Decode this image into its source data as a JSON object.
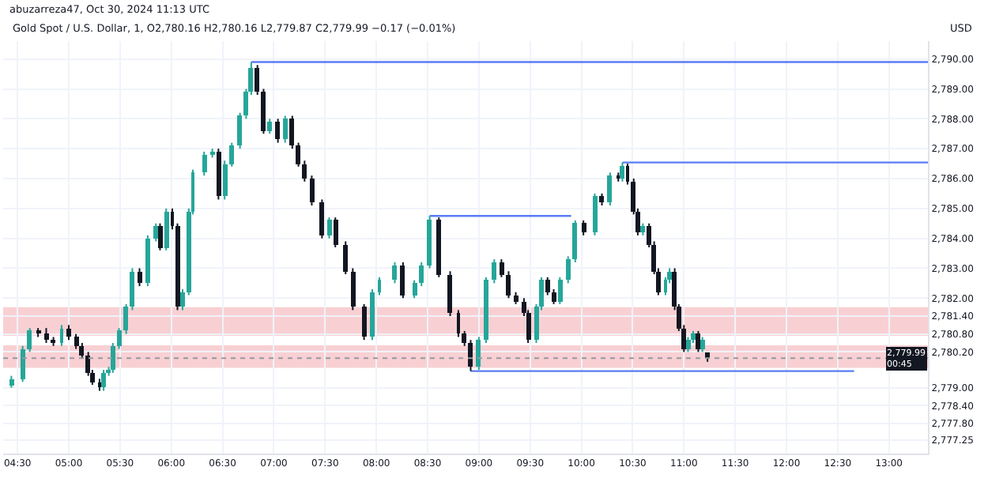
{
  "chart_data": {
    "type": "candlestick",
    "title": "Gold Spot / U.S. Dollar, 1, O2,780.16 H2,780.16 L2,779.87 C2,779.99 −0.17 (−0.01%)",
    "ylabel": "USD",
    "annotations": [
      "abuzarreza47, Oct 30, 2024 11:13 UTC"
    ],
    "x": [
      4.44,
      4.55,
      4.62,
      4.7,
      4.78,
      4.85,
      4.93,
      5.0,
      5.07,
      5.13,
      5.19,
      5.23,
      5.3,
      5.34,
      5.39,
      5.43,
      5.49,
      5.56,
      5.62,
      5.69,
      5.77,
      5.85,
      5.89,
      5.95,
      6.01,
      6.06,
      6.11,
      6.17,
      6.21,
      6.32,
      6.4,
      6.46,
      6.52,
      6.59,
      6.67,
      6.73,
      6.78,
      6.84,
      6.9,
      6.96,
      7.04,
      7.11,
      7.18,
      7.24,
      7.3,
      7.37,
      7.47,
      7.54,
      7.6,
      7.7,
      7.77,
      7.88,
      7.96,
      8.03,
      8.18,
      8.26,
      8.37,
      8.44,
      8.52,
      8.61,
      8.72,
      8.8,
      8.86,
      8.92,
      9.0,
      9.07,
      9.15,
      9.22,
      9.29,
      9.36,
      9.44,
      9.48,
      9.56,
      9.61,
      9.67,
      9.73,
      9.79,
      9.87,
      9.94,
      10.02,
      10.13,
      10.2,
      10.28,
      10.36,
      10.4,
      10.45,
      10.51,
      10.55,
      10.6,
      10.66,
      10.71,
      10.75,
      10.82,
      10.86,
      10.91,
      10.95,
      11.0,
      11.04,
      11.09,
      11.14,
      11.18,
      11.23
    ],
    "ohlc": [
      [
        2779.1,
        2779.4,
        2779.0,
        2779.3
      ],
      [
        2779.3,
        2780.4,
        2779.2,
        2780.3
      ],
      [
        2780.3,
        2781.0,
        2780.2,
        2780.9
      ],
      [
        2780.9,
        2781.0,
        2780.7,
        2780.8
      ],
      [
        2780.8,
        2781.0,
        2780.5,
        2780.6
      ],
      [
        2780.6,
        2780.7,
        2780.4,
        2780.5
      ],
      [
        2780.5,
        2781.1,
        2780.4,
        2781.0
      ],
      [
        2781.0,
        2781.1,
        2780.6,
        2780.7
      ],
      [
        2780.7,
        2780.8,
        2780.3,
        2780.4
      ],
      [
        2780.4,
        2780.5,
        2780.0,
        2780.1
      ],
      [
        2780.1,
        2780.2,
        2779.4,
        2779.5
      ],
      [
        2779.5,
        2779.6,
        2779.1,
        2779.2
      ],
      [
        2779.2,
        2779.3,
        2778.9,
        2779.0
      ],
      [
        2779.0,
        2779.6,
        2778.9,
        2779.5
      ],
      [
        2779.5,
        2779.7,
        2779.4,
        2779.6
      ],
      [
        2779.6,
        2780.5,
        2779.5,
        2780.4
      ],
      [
        2780.4,
        2781.0,
        2780.3,
        2780.9
      ],
      [
        2780.9,
        2781.8,
        2780.8,
        2781.7
      ],
      [
        2781.7,
        2783.0,
        2781.6,
        2782.9
      ],
      [
        2782.9,
        2783.0,
        2782.4,
        2782.5
      ],
      [
        2782.5,
        2784.1,
        2782.4,
        2784.0
      ],
      [
        2784.0,
        2784.5,
        2783.9,
        2784.4
      ],
      [
        2784.4,
        2784.5,
        2783.6,
        2783.7
      ],
      [
        2783.7,
        2785.0,
        2783.6,
        2784.9
      ],
      [
        2784.9,
        2785.0,
        2784.3,
        2784.4
      ],
      [
        2784.4,
        2784.5,
        2781.6,
        2781.7
      ],
      [
        2781.7,
        2782.3,
        2781.6,
        2782.2
      ],
      [
        2782.2,
        2785.0,
        2782.1,
        2784.9
      ],
      [
        2784.9,
        2786.3,
        2784.8,
        2786.2
      ],
      [
        2786.2,
        2786.9,
        2786.1,
        2786.8
      ],
      [
        2786.8,
        2787.0,
        2786.7,
        2786.9
      ],
      [
        2786.9,
        2787.0,
        2785.3,
        2785.4
      ],
      [
        2785.4,
        2786.6,
        2785.3,
        2786.5
      ],
      [
        2786.5,
        2787.2,
        2786.4,
        2787.1
      ],
      [
        2787.1,
        2788.2,
        2787.0,
        2788.1
      ],
      [
        2788.1,
        2789.0,
        2788.0,
        2788.9
      ],
      [
        2788.9,
        2789.9,
        2788.8,
        2789.7
      ],
      [
        2789.7,
        2789.8,
        2788.8,
        2788.9
      ],
      [
        2788.9,
        2789.0,
        2787.5,
        2787.6
      ],
      [
        2787.6,
        2788.0,
        2787.5,
        2787.9
      ],
      [
        2787.9,
        2788.0,
        2787.2,
        2787.3
      ],
      [
        2787.3,
        2788.1,
        2787.2,
        2788.0
      ],
      [
        2788.0,
        2788.1,
        2787.0,
        2787.1
      ],
      [
        2787.1,
        2787.2,
        2786.4,
        2786.5
      ],
      [
        2786.5,
        2786.6,
        2785.9,
        2786.0
      ],
      [
        2786.0,
        2786.1,
        2785.1,
        2785.2
      ],
      [
        2785.2,
        2785.3,
        2784.0,
        2784.1
      ],
      [
        2784.1,
        2784.7,
        2784.0,
        2784.6
      ],
      [
        2784.6,
        2784.7,
        2783.7,
        2783.8
      ],
      [
        2783.8,
        2783.9,
        2782.8,
        2782.9
      ],
      [
        2782.9,
        2783.0,
        2781.6,
        2781.7
      ],
      [
        2781.7,
        2781.8,
        2780.6,
        2780.7
      ],
      [
        2780.7,
        2782.3,
        2780.6,
        2782.2
      ],
      [
        2782.2,
        2782.7,
        2782.1,
        2782.6
      ],
      [
        2782.6,
        2783.2,
        2782.5,
        2783.1
      ],
      [
        2783.1,
        2783.2,
        2782.0,
        2782.1
      ],
      [
        2782.1,
        2782.6,
        2782.0,
        2782.5
      ],
      [
        2782.5,
        2783.2,
        2782.4,
        2783.1
      ],
      [
        2783.1,
        2784.75,
        2783.0,
        2784.6
      ],
      [
        2784.6,
        2784.7,
        2782.7,
        2782.8
      ],
      [
        2782.8,
        2782.9,
        2781.4,
        2781.5
      ],
      [
        2781.5,
        2781.6,
        2780.7,
        2780.8
      ],
      [
        2780.8,
        2780.9,
        2780.4,
        2780.5
      ],
      [
        2780.5,
        2780.6,
        2779.56,
        2779.7
      ],
      [
        2779.7,
        2780.7,
        2779.6,
        2780.6
      ],
      [
        2780.6,
        2782.7,
        2780.5,
        2782.6
      ],
      [
        2782.6,
        2783.3,
        2782.5,
        2783.2
      ],
      [
        2783.2,
        2783.3,
        2782.7,
        2782.8
      ],
      [
        2782.8,
        2782.9,
        2782.0,
        2782.1
      ],
      [
        2782.1,
        2782.2,
        2781.8,
        2781.9
      ],
      [
        2781.9,
        2782.0,
        2781.4,
        2781.5
      ],
      [
        2781.5,
        2781.6,
        2780.5,
        2780.6
      ],
      [
        2780.6,
        2781.8,
        2780.5,
        2781.7
      ],
      [
        2781.7,
        2782.7,
        2781.6,
        2782.6
      ],
      [
        2782.6,
        2782.7,
        2782.1,
        2782.2
      ],
      [
        2782.2,
        2782.3,
        2781.8,
        2781.9
      ],
      [
        2781.9,
        2782.7,
        2781.8,
        2782.6
      ],
      [
        2782.6,
        2783.4,
        2782.5,
        2783.3
      ],
      [
        2783.3,
        2784.6,
        2783.2,
        2784.5
      ],
      [
        2784.5,
        2784.6,
        2784.1,
        2784.2
      ],
      [
        2784.2,
        2785.5,
        2784.1,
        2785.4
      ],
      [
        2785.4,
        2785.5,
        2785.1,
        2785.2
      ],
      [
        2785.2,
        2786.2,
        2785.1,
        2786.1
      ],
      [
        2786.1,
        2786.2,
        2785.9,
        2786.0
      ],
      [
        2786.0,
        2786.54,
        2785.9,
        2786.4
      ],
      [
        2786.4,
        2786.5,
        2785.8,
        2785.9
      ],
      [
        2785.9,
        2786.0,
        2784.8,
        2784.9
      ],
      [
        2784.9,
        2785.0,
        2784.1,
        2784.2
      ],
      [
        2784.2,
        2784.5,
        2784.1,
        2784.4
      ],
      [
        2784.4,
        2784.5,
        2783.7,
        2783.8
      ],
      [
        2783.8,
        2783.9,
        2782.8,
        2782.9
      ],
      [
        2782.9,
        2783.0,
        2782.1,
        2782.2
      ],
      [
        2782.2,
        2782.7,
        2782.1,
        2782.6
      ],
      [
        2782.6,
        2783.0,
        2782.5,
        2782.9
      ],
      [
        2782.9,
        2783.0,
        2781.6,
        2781.7
      ],
      [
        2781.7,
        2781.8,
        2780.9,
        2781.0
      ],
      [
        2781.0,
        2781.1,
        2780.2,
        2780.3
      ],
      [
        2780.3,
        2780.7,
        2780.2,
        2780.6
      ],
      [
        2780.6,
        2780.9,
        2780.5,
        2780.8
      ],
      [
        2780.8,
        2780.9,
        2780.2,
        2780.3
      ],
      [
        2780.3,
        2780.7,
        2780.2,
        2780.6
      ],
      [
        2780.16,
        2780.16,
        2779.87,
        2779.99
      ]
    ],
    "series": [
      {
        "type": "line",
        "color": "#5b7cf5",
        "x": [
          6.78,
          13.38
        ],
        "values": [
          2789.9,
          2789.9
        ]
      },
      {
        "type": "line",
        "color": "#5b7cf5",
        "x": [
          10.4,
          13.38
        ],
        "values": [
          2786.54,
          2786.54
        ]
      },
      {
        "type": "line",
        "color": "#5b7cf5",
        "x": [
          8.52,
          9.9
        ],
        "values": [
          2784.75,
          2784.75
        ]
      },
      {
        "type": "line",
        "color": "#5b7cf5",
        "x": [
          8.92,
          12.66
        ],
        "values": [
          2779.56,
          2779.56
        ]
      }
    ],
    "bands": [
      {
        "axis": "y",
        "from": 2780.74,
        "to": 2781.7,
        "color": "#f8d0d3"
      },
      {
        "axis": "y",
        "from": 2779.67,
        "to": 2780.42,
        "color": "#f8d0d3"
      }
    ],
    "ref_lines": [
      {
        "axis": "y",
        "value": 2779.99,
        "label": "2,779.99\n00:45",
        "color": "#9598a1",
        "line_style": "dotted"
      }
    ],
    "xlim": [
      4.36,
      13.38
    ],
    "xticks": [
      {
        "value": 4.5,
        "label": "04:30"
      },
      {
        "value": 5,
        "label": "05:00"
      },
      {
        "value": 5.5,
        "label": "05:30"
      },
      {
        "value": 6,
        "label": "06:00"
      },
      {
        "value": 6.5,
        "label": "06:30"
      },
      {
        "value": 7,
        "label": "07:00"
      },
      {
        "value": 7.5,
        "label": "07:30"
      },
      {
        "value": 8,
        "label": "08:00"
      },
      {
        "value": 8.5,
        "label": "08:30"
      },
      {
        "value": 9,
        "label": "09:00"
      },
      {
        "value": 9.5,
        "label": "09:30"
      },
      {
        "value": 10,
        "label": "10:00"
      },
      {
        "value": 10.5,
        "label": "10:30"
      },
      {
        "value": 11,
        "label": "11:00"
      },
      {
        "value": 11.5,
        "label": "11:30"
      },
      {
        "value": 12,
        "label": "12:00"
      },
      {
        "value": 12.5,
        "label": "12:30"
      },
      {
        "value": 13,
        "label": "13:00"
      }
    ],
    "ylim": [
      2776.8,
      2790.6
    ],
    "yticks": [
      {
        "value": 2790,
        "label": "2,790.00"
      },
      {
        "value": 2789,
        "label": "2,789.00"
      },
      {
        "value": 2788,
        "label": "2,788.00"
      },
      {
        "value": 2787,
        "label": "2,787.00"
      },
      {
        "value": 2786,
        "label": "2,786.00"
      },
      {
        "value": 2785,
        "label": "2,785.00"
      },
      {
        "value": 2784,
        "label": "2,784.00"
      },
      {
        "value": 2783,
        "label": "2,783.00"
      },
      {
        "value": 2782,
        "label": "2,782.00"
      },
      {
        "value": 2781.4,
        "label": "2,781.40"
      },
      {
        "value": 2780.8,
        "label": "2,780.80"
      },
      {
        "value": 2780.2,
        "label": "2,780.20"
      },
      {
        "value": 2779,
        "label": "2,779.00"
      },
      {
        "value": 2778.4,
        "label": "2,778.40"
      },
      {
        "value": 2777.8,
        "label": "2,777.80"
      },
      {
        "value": 2777.25,
        "label": "2,777.25"
      }
    ],
    "grid": true
  }
}
